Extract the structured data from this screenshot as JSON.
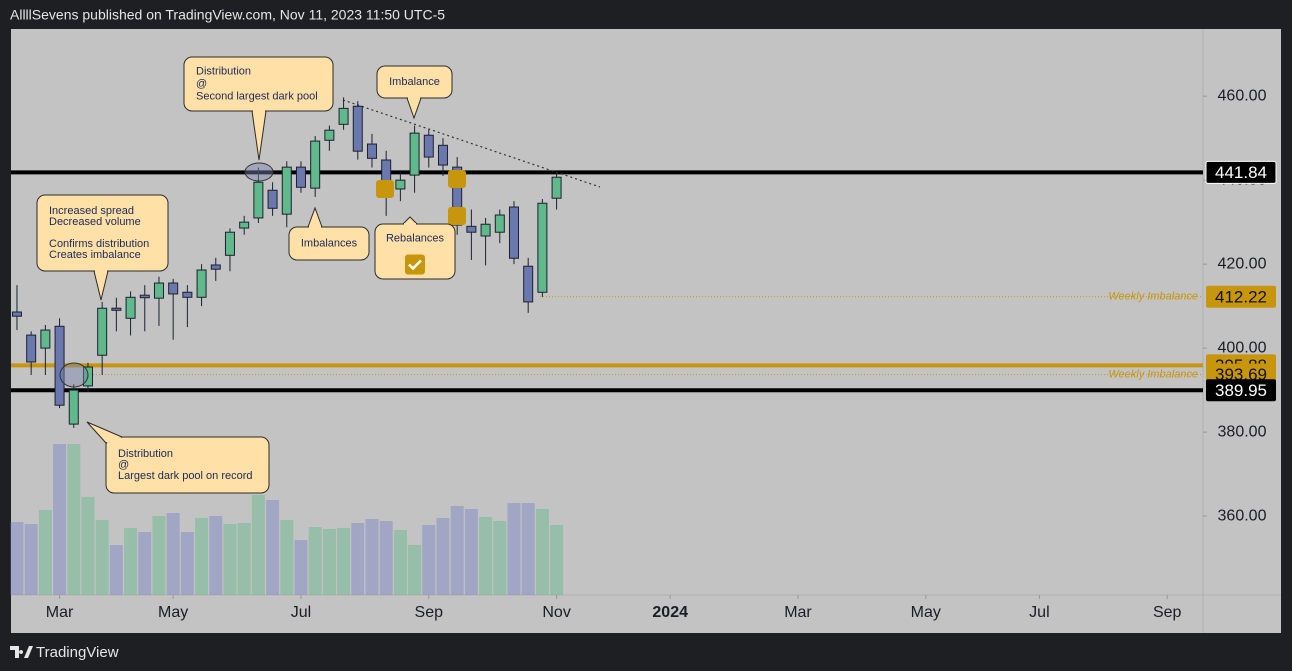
{
  "header": {
    "text": "AllllSevens published on TradingView.com, Nov 11, 2023 11:50 UTC-5"
  },
  "chart_data": {
    "type": "candlestick",
    "ylim": [
      341.2,
      476
    ],
    "yticks": [
      {
        "value": 360,
        "label": "360.00"
      },
      {
        "value": 380,
        "label": "380.00"
      },
      {
        "value": 400,
        "label": "400.00"
      },
      {
        "value": 420,
        "label": "420.00"
      },
      {
        "value": 440,
        "label": "440.00"
      },
      {
        "value": 460,
        "label": "460.00"
      }
    ],
    "xlim": [
      -0.42,
      83.52
    ],
    "xticks": [
      {
        "value": 3,
        "label": "Mar"
      },
      {
        "value": 11,
        "label": "May"
      },
      {
        "value": 20,
        "label": "Jul"
      },
      {
        "value": 29,
        "label": "Sep"
      },
      {
        "value": 38,
        "label": "Nov"
      },
      {
        "value": 46,
        "label": "2024"
      },
      {
        "value": 55,
        "label": "Mar"
      },
      {
        "value": 64,
        "label": "May"
      },
      {
        "value": 72,
        "label": "Jul"
      },
      {
        "value": 81,
        "label": "Sep"
      }
    ],
    "up_color": "#5fb98a",
    "down_color": "#6a78ad",
    "open": [
      408.6,
      403.1,
      400.0,
      405.2,
      381.9,
      391.0,
      398.3,
      409.5,
      407.1,
      412.6,
      411.9,
      415.5,
      413.3,
      412.1,
      419.8,
      422.1,
      428.6,
      431.0,
      437.6,
      431.9,
      443.1,
      438.1,
      449.5,
      453.3,
      457.6,
      448.6,
      444.8,
      437.9,
      441.2,
      450.7,
      448.3,
      443.1,
      429.0,
      426.7,
      427.6,
      433.6,
      419.5,
      413.3,
      435.7
    ],
    "high": [
      415.0,
      404.0,
      405.5,
      407.1,
      391.4,
      396.5,
      411.0,
      412.0,
      413.5,
      415.0,
      417.0,
      416.5,
      415.0,
      420.0,
      421.5,
      428.5,
      431.5,
      443.0,
      439.5,
      444.5,
      444.5,
      450.5,
      453.0,
      459.7,
      458.8,
      451.0,
      447.0,
      442.0,
      453.0,
      452.0,
      450.0,
      445.5,
      433.0,
      431.0,
      433.0,
      435.0,
      421.5,
      435.5,
      442.0
    ],
    "low": [
      404.3,
      393.6,
      393.6,
      385.7,
      381.0,
      389.5,
      393.6,
      404.0,
      403.0,
      404.0,
      405.3,
      402.0,
      405.0,
      410.0,
      416.0,
      418.3,
      427.0,
      429.8,
      431.5,
      428.8,
      437.0,
      436.0,
      447.0,
      452.0,
      444.9,
      443.0,
      431.5,
      435.0,
      437.0,
      443.0,
      441.0,
      427.0,
      421.0,
      419.7,
      425.0,
      420.0,
      408.4,
      412.2,
      433.0
    ],
    "close": [
      407.6,
      396.7,
      404.3,
      386.4,
      390.0,
      395.5,
      409.5,
      409.0,
      412.1,
      412.0,
      415.5,
      412.9,
      412.1,
      418.6,
      418.8,
      427.6,
      430.0,
      439.5,
      433.3,
      443.1,
      438.3,
      449.3,
      451.9,
      457.1,
      446.9,
      445.2,
      437.6,
      440.0,
      451.2,
      445.5,
      443.6,
      429.3,
      427.6,
      429.5,
      431.7,
      421.4,
      411.0,
      434.5,
      440.7
    ],
    "volume": [
      73,
      71,
      85,
      151,
      151,
      98,
      75,
      50,
      67,
      63,
      79,
      82,
      63,
      77,
      79,
      71,
      72,
      100,
      95,
      75,
      55,
      68,
      66,
      67,
      72,
      76,
      74,
      65,
      50,
      70,
      77,
      89,
      86,
      78,
      74,
      92,
      92,
      86,
      70
    ],
    "levels": [
      {
        "value": 441.84,
        "color": "#000000",
        "style": "solid"
      },
      {
        "value": 412.22,
        "color": "#c8960c",
        "style": "dotted",
        "note": "Weekly Imbalance"
      },
      {
        "value": 395.88,
        "color": "#c8960c",
        "style": "solid"
      },
      {
        "value": 393.69,
        "color": "#c8960c",
        "style": "dotted",
        "note": "Weekly Imbalance"
      },
      {
        "value": 389.95,
        "color": "#000000",
        "style": "solid"
      }
    ],
    "annotations": [
      {
        "lines": [
          "Distribution",
          "@",
          "Second largest dark pool"
        ]
      },
      {
        "lines": [
          "Imbalance"
        ]
      },
      {
        "lines": [
          "Increased spread",
          "Decreased volume",
          "Confirms distribution",
          "Creates imbalance"
        ]
      },
      {
        "lines": [
          "Imbalances"
        ]
      },
      {
        "lines": [
          "Rebalances"
        ]
      },
      {
        "lines": [
          "Distribution",
          "@",
          "Largest dark pool on record"
        ]
      }
    ]
  },
  "footer": {
    "brand": "TradingView"
  }
}
